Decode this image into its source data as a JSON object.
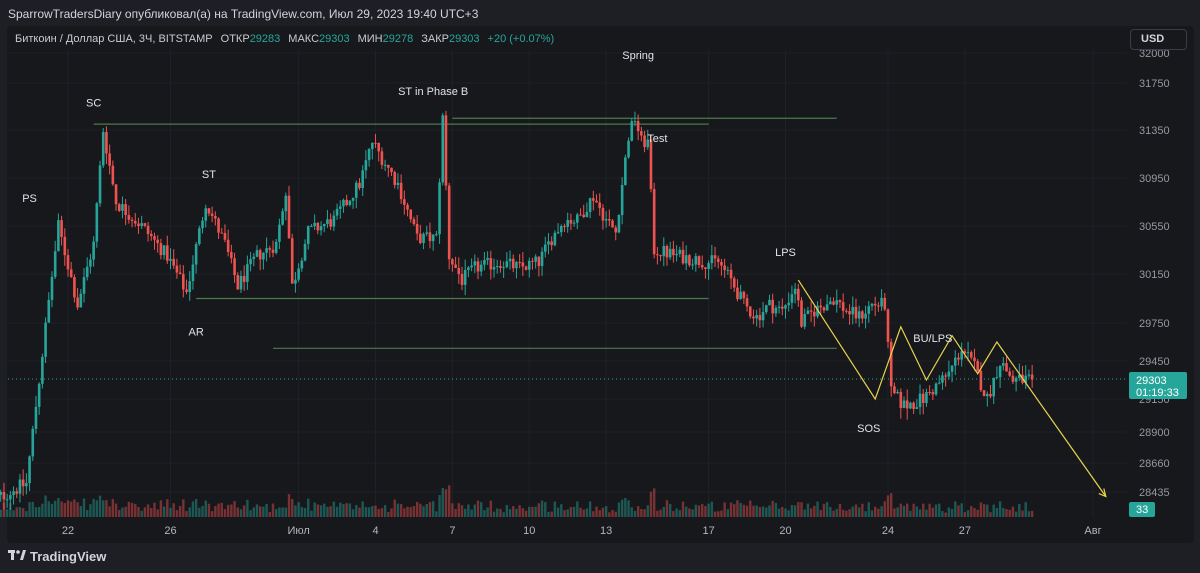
{
  "header": {
    "publisher_line": "SparrowTradersDiary опубликовал(а) на TradingView.com, Июл 29, 2023 19:40 UTC+3"
  },
  "legend": {
    "symbol": "Биткоин / Доллар США, 3Ч, BITSTAMP",
    "open_label": "ОТКР",
    "open_value": "29283",
    "high_label": "МАКС",
    "high_value": "29303",
    "low_label": "МИН",
    "low_value": "29278",
    "close_label": "ЗАКР",
    "close_value": "29303",
    "change": "+20 (+0.07%)"
  },
  "currency_button": "USD",
  "price_label": {
    "value": "29303",
    "countdown": "01:19:33"
  },
  "volume_label": "33",
  "footer": {
    "brand": "TradingView"
  },
  "colors": {
    "up": "#26a69a",
    "down": "#ef5350",
    "level": "#4b7a4a",
    "projection": "#e8d44d",
    "background": "#17181c",
    "grid": "#1f2127"
  },
  "chart_data": {
    "type": "candlestick",
    "symbol": "BTCUSD",
    "exchange": "BITSTAMP",
    "timeframe": "3H",
    "y_ticks": [
      32000,
      31750,
      31350,
      30950,
      30550,
      30150,
      29750,
      29450,
      29150,
      28900,
      28660,
      28435
    ],
    "x_ticks": [
      {
        "label": "22",
        "date": "2023-06-22"
      },
      {
        "label": "26",
        "date": "2023-06-26"
      },
      {
        "label": "Июл",
        "date": "2023-07-01"
      },
      {
        "label": "4",
        "date": "2023-07-04"
      },
      {
        "label": "7",
        "date": "2023-07-07"
      },
      {
        "label": "10",
        "date": "2023-07-10"
      },
      {
        "label": "13",
        "date": "2023-07-13"
      },
      {
        "label": "17",
        "date": "2023-07-17"
      },
      {
        "label": "20",
        "date": "2023-07-20"
      },
      {
        "label": "24",
        "date": "2023-07-24"
      },
      {
        "label": "27",
        "date": "2023-07-27"
      },
      {
        "label": "Авг",
        "date": "2023-08-01"
      }
    ],
    "path_points": [
      {
        "date": "2023-06-19T00:00",
        "price": 28350
      },
      {
        "date": "2023-06-20T12:00",
        "price": 28500
      },
      {
        "date": "2023-06-21T00:00",
        "price": 29300
      },
      {
        "date": "2023-06-21T18:00",
        "price": 30550
      },
      {
        "date": "2023-06-22T12:00",
        "price": 29900
      },
      {
        "date": "2023-06-23T03:00",
        "price": 30400
      },
      {
        "date": "2023-06-23T12:00",
        "price": 31350
      },
      {
        "date": "2023-06-24T00:00",
        "price": 30750
      },
      {
        "date": "2023-06-25T00:00",
        "price": 30550
      },
      {
        "date": "2023-06-26T00:00",
        "price": 30300
      },
      {
        "date": "2023-06-26T18:00",
        "price": 30000
      },
      {
        "date": "2023-06-27T12:00",
        "price": 30750
      },
      {
        "date": "2023-06-28T06:00",
        "price": 30400
      },
      {
        "date": "2023-06-28T18:00",
        "price": 30050
      },
      {
        "date": "2023-06-29T12:00",
        "price": 30300
      },
      {
        "date": "2023-06-30T06:00",
        "price": 30400
      },
      {
        "date": "2023-06-30T15:00",
        "price": 30850
      },
      {
        "date": "2023-06-30T21:00",
        "price": 30050
      },
      {
        "date": "2023-07-01T12:00",
        "price": 30500
      },
      {
        "date": "2023-07-02T12:00",
        "price": 30600
      },
      {
        "date": "2023-07-03T12:00",
        "price": 30900
      },
      {
        "date": "2023-07-04T00:00",
        "price": 31250
      },
      {
        "date": "2023-07-05T00:00",
        "price": 30900
      },
      {
        "date": "2023-07-05T18:00",
        "price": 30450
      },
      {
        "date": "2023-07-06T12:00",
        "price": 30450
      },
      {
        "date": "2023-07-06T18:00",
        "price": 31450
      },
      {
        "date": "2023-07-07T00:00",
        "price": 30300
      },
      {
        "date": "2023-07-07T12:00",
        "price": 30100
      },
      {
        "date": "2023-07-08T00:00",
        "price": 30200
      },
      {
        "date": "2023-07-09T00:00",
        "price": 30250
      },
      {
        "date": "2023-07-09T18:00",
        "price": 30200
      },
      {
        "date": "2023-07-10T12:00",
        "price": 30250
      },
      {
        "date": "2023-07-11T00:00",
        "price": 30450
      },
      {
        "date": "2023-07-11T12:00",
        "price": 30600
      },
      {
        "date": "2023-07-12T00:00",
        "price": 30600
      },
      {
        "date": "2023-07-12T15:00",
        "price": 30800
      },
      {
        "date": "2023-07-13T03:00",
        "price": 30600
      },
      {
        "date": "2023-07-13T12:00",
        "price": 30500
      },
      {
        "date": "2023-07-14T00:00",
        "price": 31300
      },
      {
        "date": "2023-07-14T06:00",
        "price": 31450
      },
      {
        "date": "2023-07-14T12:00",
        "price": 31250
      },
      {
        "date": "2023-07-14T18:00",
        "price": 31250
      },
      {
        "date": "2023-07-15T00:00",
        "price": 30350
      },
      {
        "date": "2023-07-16T00:00",
        "price": 30300
      },
      {
        "date": "2023-07-17T00:00",
        "price": 30250
      },
      {
        "date": "2023-07-17T12:00",
        "price": 30250
      },
      {
        "date": "2023-07-18T00:00",
        "price": 30100
      },
      {
        "date": "2023-07-18T12:00",
        "price": 29900
      },
      {
        "date": "2023-07-19T00:00",
        "price": 29800
      },
      {
        "date": "2023-07-19T12:00",
        "price": 29900
      },
      {
        "date": "2023-07-20T00:00",
        "price": 29850
      },
      {
        "date": "2023-07-20T12:00",
        "price": 30050
      },
      {
        "date": "2023-07-20T18:00",
        "price": 29750
      },
      {
        "date": "2023-07-21T06:00",
        "price": 29850
      },
      {
        "date": "2023-07-22T00:00",
        "price": 29950
      },
      {
        "date": "2023-07-22T12:00",
        "price": 29850
      },
      {
        "date": "2023-07-23T00:00",
        "price": 29800
      },
      {
        "date": "2023-07-23T12:00",
        "price": 29900
      },
      {
        "date": "2023-07-24T00:00",
        "price": 29900
      },
      {
        "date": "2023-07-24T06:00",
        "price": 29200
      },
      {
        "date": "2023-07-24T18:00",
        "price": 29100
      },
      {
        "date": "2023-07-25T12:00",
        "price": 29150
      },
      {
        "date": "2023-07-26T00:00",
        "price": 29250
      },
      {
        "date": "2023-07-26T12:00",
        "price": 29350
      },
      {
        "date": "2023-07-27T00:00",
        "price": 29550
      },
      {
        "date": "2023-07-27T12:00",
        "price": 29400
      },
      {
        "date": "2023-07-28T00:00",
        "price": 29150
      },
      {
        "date": "2023-07-28T12:00",
        "price": 29450
      },
      {
        "date": "2023-07-29T00:00",
        "price": 29300
      },
      {
        "date": "2023-07-29T15:00",
        "price": 29303
      }
    ],
    "levels": [
      {
        "kind": "resistance",
        "from": "2023-06-23",
        "to": "2023-07-17",
        "price": 31400
      },
      {
        "kind": "resistance",
        "from": "2023-07-07",
        "to": "2023-07-22",
        "price": 31450
      },
      {
        "kind": "support",
        "from": "2023-06-27",
        "to": "2023-07-17",
        "price": 29950
      },
      {
        "kind": "support",
        "from": "2023-06-30",
        "to": "2023-07-22",
        "price": 29550
      }
    ],
    "projection": [
      {
        "date": "2023-07-20T12:00",
        "price": 30100
      },
      {
        "date": "2023-07-23T12:00",
        "price": 29150
      },
      {
        "date": "2023-07-24T12:00",
        "price": 29720
      },
      {
        "date": "2023-07-25T12:00",
        "price": 29300
      },
      {
        "date": "2023-07-26T12:00",
        "price": 29650
      },
      {
        "date": "2023-07-27T12:00",
        "price": 29350
      },
      {
        "date": "2023-07-28T06:00",
        "price": 29600
      },
      {
        "date": "2023-08-01T12:00",
        "price": 28400
      }
    ],
    "annotations": [
      {
        "text": "PS",
        "date": "2023-06-20T12:00",
        "price": 30750
      },
      {
        "text": "SC",
        "date": "2023-06-23T00:00",
        "price": 31550
      },
      {
        "text": "ST",
        "date": "2023-06-27T12:00",
        "price": 30950
      },
      {
        "text": "AR",
        "date": "2023-06-27T00:00",
        "price": 29650
      },
      {
        "text": "ST in Phase B",
        "date": "2023-07-06T06:00",
        "price": 31650
      },
      {
        "text": "Spring",
        "date": "2023-07-14T06:00",
        "price": 31950
      },
      {
        "text": "Test",
        "date": "2023-07-15T00:00",
        "price": 31250
      },
      {
        "text": "LPS",
        "date": "2023-07-20T00:00",
        "price": 30300
      },
      {
        "text": "BU/LPS",
        "date": "2023-07-25T18:00",
        "price": 29600
      },
      {
        "text": "SOS",
        "date": "2023-07-23T06:00",
        "price": 28900
      }
    ],
    "last_price": 29303,
    "last_volume": 33
  }
}
